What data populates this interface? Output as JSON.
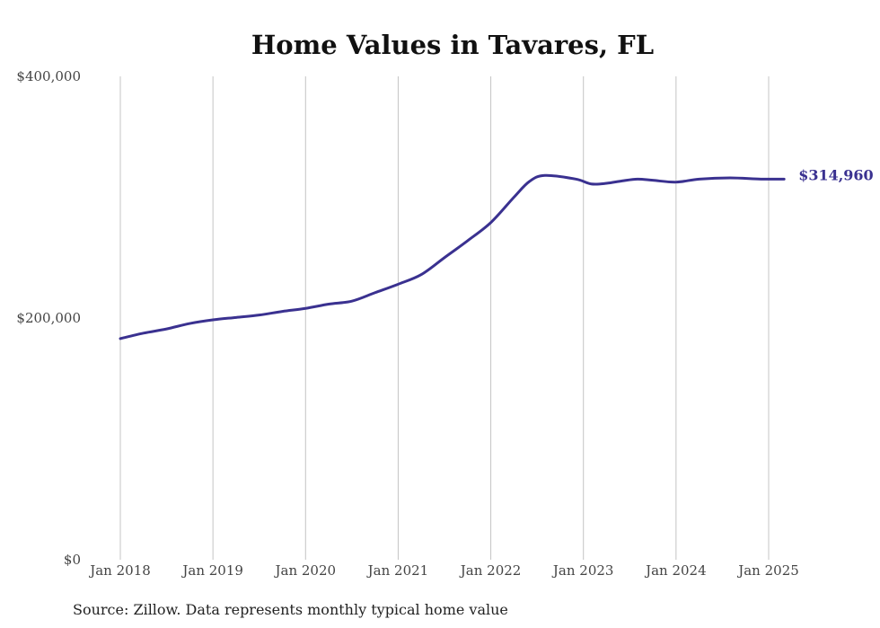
{
  "chart_data": {
    "type": "line",
    "title": "Home Values in Tavares, FL",
    "xlabel": "",
    "ylabel": "",
    "source": "Source: Zillow. Data represents monthly typical home value",
    "ylim": [
      0,
      400000
    ],
    "y_ticks": [
      0,
      200000,
      400000
    ],
    "y_tick_labels": [
      "$0",
      "$200,000",
      "$400,000"
    ],
    "x_ticks": [
      "2018-01",
      "2019-01",
      "2020-01",
      "2021-01",
      "2022-01",
      "2023-01",
      "2024-01",
      "2025-01"
    ],
    "x_tick_labels": [
      "Jan 2018",
      "Jan 2019",
      "Jan 2020",
      "Jan 2021",
      "Jan 2022",
      "Jan 2023",
      "Jan 2024",
      "Jan 2025"
    ],
    "grid": "vertical",
    "line_color": "#3a3190",
    "end_label": "$314,960",
    "series": [
      {
        "points": [
          [
            "2018-01",
            183000
          ],
          [
            "2018-04",
            187500
          ],
          [
            "2018-07",
            191000
          ],
          [
            "2018-10",
            195500
          ],
          [
            "2019-01",
            198500
          ],
          [
            "2019-04",
            200500
          ],
          [
            "2019-07",
            202500
          ],
          [
            "2019-10",
            205500
          ],
          [
            "2020-01",
            208000
          ],
          [
            "2020-04",
            211500
          ],
          [
            "2020-07",
            214000
          ],
          [
            "2020-10",
            221000
          ],
          [
            "2021-01",
            228000
          ],
          [
            "2021-04",
            236000
          ],
          [
            "2021-07",
            250000
          ],
          [
            "2021-10",
            264000
          ],
          [
            "2022-01",
            279000
          ],
          [
            "2022-04",
            300000
          ],
          [
            "2022-06",
            313000
          ],
          [
            "2022-08",
            318000
          ],
          [
            "2022-12",
            315000
          ],
          [
            "2023-02",
            311000
          ],
          [
            "2023-04",
            311500
          ],
          [
            "2023-06",
            313500
          ],
          [
            "2023-08",
            315000
          ],
          [
            "2023-10",
            314000
          ],
          [
            "2024-01",
            312500
          ],
          [
            "2024-04",
            315000
          ],
          [
            "2024-08",
            316000
          ],
          [
            "2024-12",
            315000
          ],
          [
            "2025-03",
            314960
          ]
        ]
      }
    ]
  }
}
